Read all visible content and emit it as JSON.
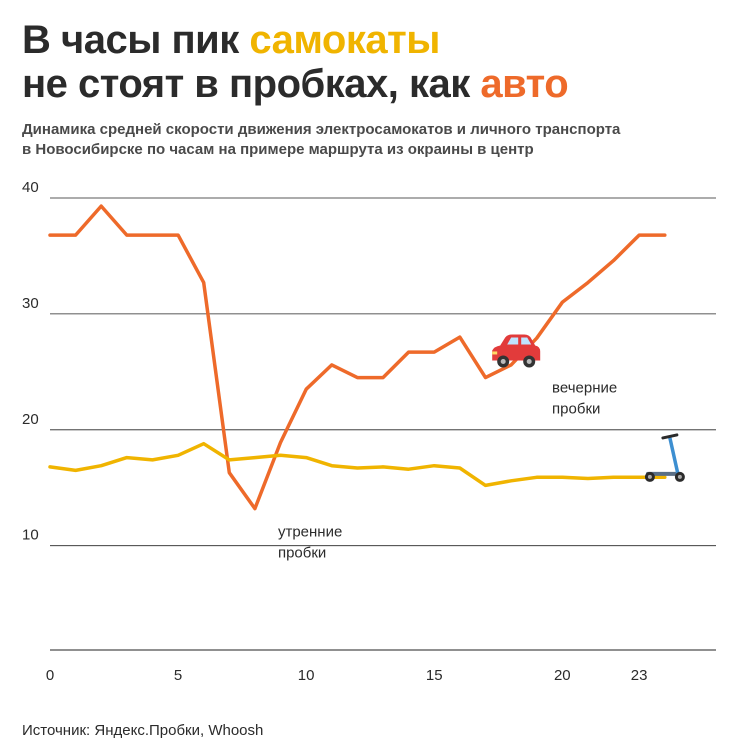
{
  "title": {
    "line1_prefix": "В часы пик ",
    "line1_highlight": "самокаты",
    "line2_prefix": "не стоят в пробках, как ",
    "line2_highlight": "авто"
  },
  "subtitle_line1": "Динамика средней скорости движения электросамокатов и личного транспорта",
  "subtitle_line2": "в Новосибирске по часам на примере маршрута из окраины в центр",
  "source": "Источник: Яндекс.Пробки, Whoosh",
  "colors": {
    "scooter": "#f0b400",
    "car": "#ee6a2a",
    "text": "#2b2b2b",
    "grid": "#222222"
  },
  "chart_data": {
    "type": "line",
    "x": [
      0,
      1,
      2,
      3,
      4,
      5,
      6,
      7,
      8,
      9,
      10,
      11,
      12,
      13,
      14,
      15,
      16,
      17,
      18,
      19,
      20,
      21,
      22,
      23,
      24
    ],
    "xticks": [
      0,
      5,
      10,
      15,
      20,
      23
    ],
    "yticks": [
      10,
      20,
      30,
      40
    ],
    "xlim": [
      0,
      26
    ],
    "ylim": [
      1,
      40
    ],
    "grid": true,
    "series": [
      {
        "key": "car",
        "values": [
          36.8,
          36.8,
          39.3,
          36.8,
          36.8,
          36.8,
          32.7,
          16.3,
          13.2,
          18.9,
          23.5,
          25.6,
          24.5,
          24.5,
          26.7,
          26.7,
          28.0,
          24.5,
          25.6,
          27.9,
          31.0,
          32.7,
          34.6,
          36.8,
          36.8
        ]
      },
      {
        "key": "scooter",
        "values": [
          16.8,
          16.5,
          16.9,
          17.6,
          17.4,
          17.8,
          18.8,
          17.4,
          17.6,
          17.8,
          17.6,
          16.9,
          16.7,
          16.8,
          16.6,
          16.9,
          16.7,
          15.2,
          15.6,
          15.9,
          15.9,
          15.8,
          15.9,
          15.9,
          15.9
        ]
      }
    ],
    "annotations": [
      {
        "text_line1": "утренние",
        "text_line2": "пробки",
        "x": 8.9,
        "y": 10.8
      },
      {
        "text_line1": "вечерние",
        "text_line2": "пробки",
        "x": 19.6,
        "y": 23.2
      }
    ],
    "icons": [
      {
        "name": "car-icon",
        "x": 18.2,
        "y": 26.5
      },
      {
        "name": "scooter-icon",
        "x": 24.2,
        "y": 17.4
      }
    ]
  }
}
